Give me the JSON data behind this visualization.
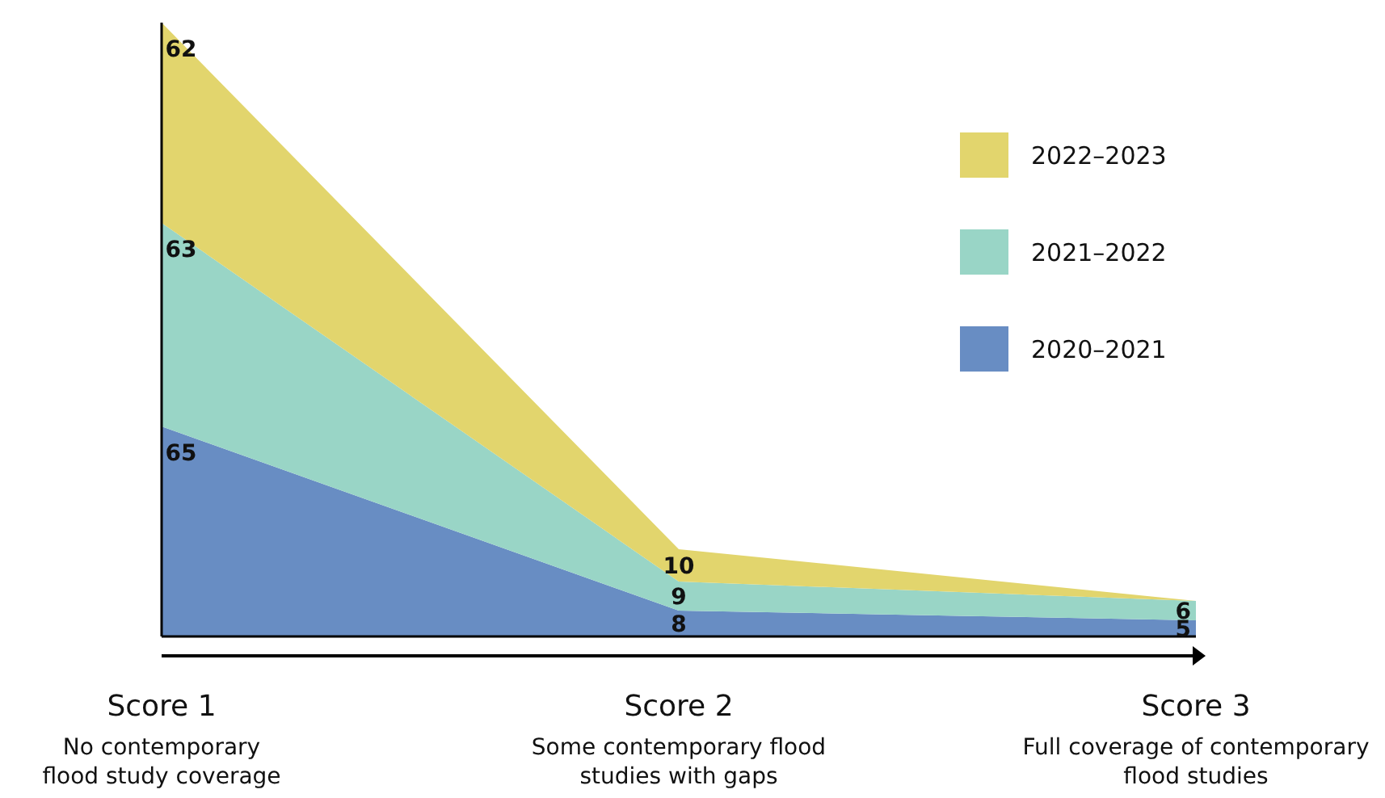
{
  "chart_data": {
    "type": "area",
    "stacked": true,
    "categories": [
      "Score 1\nNo contemporary\nflood study coverage",
      "Score 2\nSome contemporary flood\nstudies with gaps",
      "Score 3\nFull coverage of contemporary\nflood studies"
    ],
    "series": [
      {
        "name": "2020–2021",
        "color": "#688dc3",
        "values": [
          65,
          8,
          5
        ],
        "value_labels": [
          "65",
          "8",
          "5"
        ]
      },
      {
        "name": "2021–2022",
        "color": "#99d5c6",
        "values": [
          63,
          9,
          6
        ],
        "value_labels": [
          "63",
          "9",
          "6"
        ]
      },
      {
        "name": "2022–2023",
        "color": "#e2d56d",
        "values": [
          62,
          10,
          0
        ],
        "value_labels": [
          "62",
          "10",
          null
        ]
      }
    ],
    "legend": "top right"
  }
}
